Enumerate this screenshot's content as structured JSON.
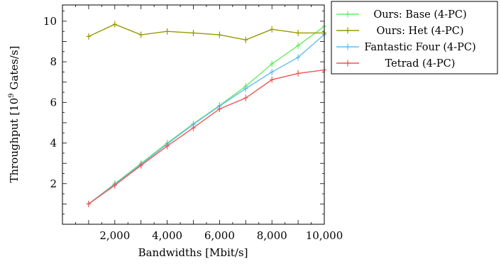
{
  "chart_data": {
    "type": "line",
    "xlabel": "Bandwidths [Mbit/s]",
    "ylabel_prefix": "Throughput [10",
    "ylabel_exp": "9",
    "ylabel_suffix": " Gates/s]",
    "xlim": [
      0,
      10000
    ],
    "ylim": [
      0,
      10.8
    ],
    "x_ticks": [
      2000,
      4000,
      6000,
      8000,
      10000
    ],
    "x_tick_labels": [
      "2,000",
      "4,000",
      "6,000",
      "8,000",
      "10,000"
    ],
    "y_ticks": [
      2,
      4,
      6,
      8,
      10
    ],
    "y_tick_labels": [
      "2",
      "4",
      "6",
      "8",
      "10"
    ],
    "x": [
      1000,
      2000,
      3000,
      4000,
      5000,
      6000,
      7000,
      8000,
      9000,
      10000
    ],
    "legend_position": "outside-top-right",
    "series": [
      {
        "name": "Ours: Base (4-PC)",
        "color": "#66ee66",
        "values": [
          1.0,
          2.0,
          3.0,
          4.0,
          4.95,
          5.85,
          6.8,
          7.9,
          8.8,
          9.75
        ]
      },
      {
        "name": "Ours: Het (4-PC)",
        "color": "#999900",
        "values": [
          9.25,
          9.85,
          9.33,
          9.5,
          9.42,
          9.33,
          9.08,
          9.6,
          9.42,
          9.42
        ]
      },
      {
        "name": "Fantastic Four (4-PC)",
        "color": "#66bbee",
        "values": [
          1.0,
          1.97,
          2.95,
          3.95,
          4.92,
          5.82,
          6.68,
          7.5,
          8.22,
          9.35
        ]
      },
      {
        "name": "Tetrad (4-PC)",
        "color": "#ee5555",
        "values": [
          1.0,
          1.92,
          2.9,
          3.85,
          4.75,
          5.68,
          6.22,
          7.12,
          7.43,
          7.6
        ]
      }
    ]
  }
}
